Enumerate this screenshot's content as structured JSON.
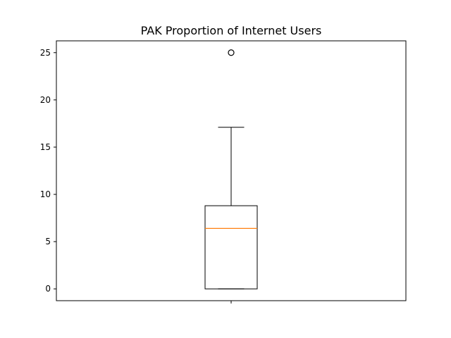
{
  "chart_data": {
    "type": "box",
    "title": "PAK Proportion of Internet Users",
    "xlabel": "",
    "ylabel": "",
    "ylim": [
      -1.25,
      26.25
    ],
    "yticks": [
      0,
      5,
      10,
      15,
      20,
      25
    ],
    "grid": false,
    "series": [
      {
        "min": 0.0,
        "q1": 0.0,
        "median": 6.4,
        "q3": 8.8,
        "max": 17.1,
        "outliers": [
          25.0
        ]
      }
    ],
    "colors": {
      "box": "#000000",
      "median": "#ff7f0e",
      "axes": "#000000"
    }
  }
}
